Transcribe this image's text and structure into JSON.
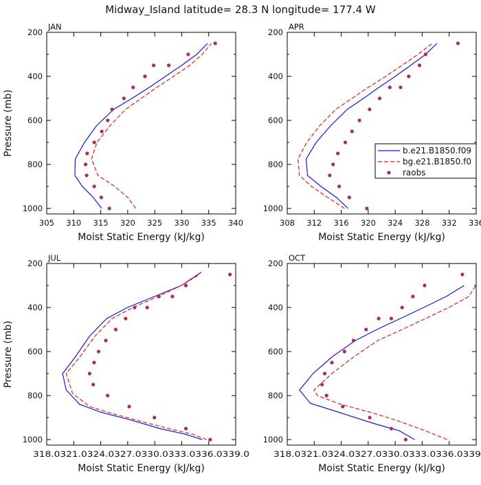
{
  "title": "Midway_Island  latitude= 28.3 N longitude= 177.4 W",
  "colors": {
    "model_b": "#1515e0",
    "model_bg": "#e81c1c",
    "raobs": "#a82c5c",
    "axis": "#000000"
  },
  "legend": [
    {
      "key": "model_b",
      "label": "b.e21.B1850.f09",
      "style": "solid"
    },
    {
      "key": "model_bg",
      "label": "bg.e21.B1850.f0",
      "style": "dashed"
    },
    {
      "key": "raobs",
      "label": "raobs",
      "style": "dot"
    }
  ],
  "chart_data": [
    {
      "type": "line",
      "panel": "JAN",
      "legend_shown": false,
      "xlabel": "Moist Static Energy (kJ/kg)",
      "ylabel": "Pressure (mb)",
      "xlim": [
        305,
        340
      ],
      "ylim": [
        200,
        1025
      ],
      "y_inverted": true,
      "xticks": [
        305,
        310,
        315,
        320,
        325,
        330,
        335,
        340
      ],
      "xtick_labels": [
        "305",
        "310",
        "315",
        "320",
        "325",
        "330",
        "335",
        "340"
      ],
      "yticks": [
        200,
        400,
        600,
        800,
        1000
      ],
      "series": [
        {
          "key": "model_b",
          "x": [
            315.2,
            313.6,
            311.6,
            310.2,
            310.3,
            312.0,
            314.2,
            317.4,
            320.8,
            324.0,
            327.0,
            330.0,
            332.8,
            334.8
          ],
          "y": [
            1000,
            950,
            900,
            850,
            775,
            700,
            625,
            550,
            500,
            450,
            400,
            350,
            300,
            250
          ]
        },
        {
          "key": "model_bg",
          "x": [
            321.5,
            320.0,
            317.6,
            314.5,
            313.3,
            314.3,
            316.7,
            319.6,
            322.5,
            325.4,
            328.5,
            331.5,
            333.8,
            335.5
          ],
          "y": [
            1000,
            950,
            900,
            850,
            775,
            700,
            625,
            550,
            500,
            450,
            400,
            350,
            300,
            250
          ]
        },
        {
          "key": "raobs",
          "x": [
            316.6,
            315.1,
            313.8,
            312.4,
            312.2,
            312.5,
            313.8,
            315.2,
            316.3,
            317.1,
            319.3,
            321.0,
            323.2,
            324.8,
            327.6,
            331.2,
            336.2
          ],
          "y": [
            1000,
            950,
            900,
            850,
            800,
            750,
            700,
            650,
            600,
            550,
            500,
            450,
            400,
            350,
            350,
            300,
            250
          ]
        }
      ]
    },
    {
      "type": "line",
      "panel": "APR",
      "legend_shown": true,
      "xlabel": "Moist Static Energy (kJ/kg)",
      "ylabel": "",
      "xlim": [
        308,
        336
      ],
      "ylim": [
        200,
        1025
      ],
      "y_inverted": true,
      "xticks": [
        308,
        312,
        316,
        320,
        324,
        328,
        332,
        336
      ],
      "xtick_labels": [
        "308",
        "312",
        "316",
        "320",
        "324",
        "328",
        "332",
        "336"
      ],
      "yticks": [
        200,
        400,
        600,
        800,
        1000
      ],
      "series": [
        {
          "key": "model_b",
          "x": [
            317.0,
            315.3,
            313.0,
            311.0,
            310.8,
            312.3,
            314.4,
            316.9,
            319.3,
            321.6,
            324.0,
            326.3,
            328.5,
            330.2
          ],
          "y": [
            1000,
            950,
            900,
            850,
            775,
            700,
            625,
            550,
            500,
            450,
            400,
            350,
            300,
            250
          ]
        },
        {
          "key": "model_bg",
          "x": [
            316.5,
            314.0,
            311.6,
            309.8,
            309.6,
            310.9,
            312.8,
            315.2,
            317.6,
            320.0,
            322.6,
            325.0,
            327.4,
            329.5
          ],
          "y": [
            1000,
            950,
            900,
            850,
            775,
            700,
            625,
            550,
            500,
            450,
            400,
            350,
            300,
            250
          ]
        },
        {
          "key": "raobs",
          "x": [
            319.8,
            317.2,
            315.7,
            314.3,
            314.8,
            315.5,
            316.6,
            317.6,
            318.7,
            320.2,
            321.7,
            323.2,
            324.8,
            326.0,
            327.6,
            328.5,
            333.3
          ],
          "y": [
            1000,
            950,
            900,
            850,
            800,
            750,
            700,
            650,
            600,
            550,
            500,
            450,
            450,
            400,
            350,
            300,
            250
          ]
        }
      ]
    },
    {
      "type": "line",
      "panel": "JUL",
      "legend_shown": false,
      "xlabel": "Moist Static Energy (kJ/kg)",
      "ylabel": "Pressure (mb)",
      "xlim": [
        318.0339,
        339.0339
      ],
      "ylim": [
        200,
        1025
      ],
      "y_inverted": true,
      "xticks": [
        318.0339,
        321.0339,
        324.0339,
        327.0339,
        330.0339,
        333.0339,
        336.0339,
        339.0339
      ],
      "xtick_labels": [
        "318.0",
        "321.0",
        "324.0",
        "327.0",
        "330.0",
        "333.0",
        "336.0",
        "339.0"
      ],
      "xtick_labels_raw": "318.0321.0324.0327.0330.0333.0336.0339.0",
      "yticks": [
        200,
        400,
        600,
        800,
        1000
      ],
      "series": [
        {
          "key": "model_b",
          "x": [
            335.3,
            333.4,
            330.6,
            327.3,
            324.0,
            321.7,
            320.2,
            319.8,
            321.2,
            322.8,
            324.7,
            327.0,
            330.0,
            333.0,
            335.2
          ],
          "y": [
            1000,
            975,
            950,
            910,
            875,
            840,
            775,
            700,
            625,
            530,
            450,
            400,
            350,
            300,
            240
          ]
        },
        {
          "key": "model_bg",
          "x": [
            335.8,
            334.2,
            331.6,
            328.3,
            325.2,
            322.8,
            320.9,
            320.2,
            321.7,
            323.4,
            325.3,
            327.6,
            330.4,
            333.0,
            335.0
          ],
          "y": [
            1000,
            975,
            950,
            915,
            880,
            850,
            790,
            700,
            625,
            530,
            450,
            400,
            350,
            300,
            250
          ]
        },
        {
          "key": "raobs",
          "x": [
            336.2,
            333.5,
            330.0,
            327.2,
            324.8,
            323.2,
            322.8,
            323.3,
            323.8,
            324.6,
            325.7,
            326.8,
            327.8,
            329.2,
            330.5,
            332.0,
            333.5,
            338.4
          ],
          "y": [
            1000,
            950,
            900,
            850,
            800,
            750,
            700,
            650,
            600,
            550,
            500,
            450,
            400,
            400,
            350,
            350,
            300,
            250
          ]
        }
      ]
    },
    {
      "type": "line",
      "panel": "OCT",
      "legend_shown": false,
      "xlabel": "Moist Static Energy (kJ/kg)",
      "ylabel": "",
      "xlim": [
        318.0339,
        339.0339
      ],
      "ylim": [
        200,
        1025
      ],
      "y_inverted": true,
      "xticks": [
        318.0339,
        321.0339,
        324.0339,
        327.0339,
        330.0339,
        333.0339,
        336.0339,
        339.0339
      ],
      "xtick_labels": [
        "318.0",
        "321.0",
        "324.0",
        "327.0",
        "330.0",
        "333.0",
        "336.0",
        "339.0"
      ],
      "xtick_labels_raw": "318.0321.0324.0327.0330.0333.0336.0339.0",
      "yticks": [
        200,
        400,
        600,
        800,
        1000
      ],
      "series": [
        {
          "key": "model_b",
          "x": [
            332.2,
            330.5,
            327.5,
            323.7,
            320.6,
            319.4,
            320.9,
            323.0,
            325.6,
            328.0,
            330.6,
            333.2,
            335.7,
            337.7
          ],
          "y": [
            1000,
            960,
            925,
            875,
            835,
            775,
            700,
            625,
            550,
            500,
            450,
            400,
            350,
            300
          ]
        },
        {
          "key": "model_bg",
          "x": [
            335.8,
            333.4,
            331.7,
            330.0,
            327.2,
            324.0,
            321.4,
            321.0,
            323.0,
            325.4,
            328.1,
            330.8,
            333.4,
            336.0,
            338.2,
            339.0
          ],
          "y": [
            1000,
            960,
            935,
            910,
            875,
            840,
            800,
            775,
            700,
            625,
            550,
            500,
            450,
            400,
            350,
            300
          ]
        },
        {
          "key": "raobs",
          "x": [
            331.2,
            329.6,
            327.2,
            324.2,
            322.4,
            321.9,
            322.2,
            323.0,
            324.4,
            325.4,
            326.8,
            328.2,
            329.6,
            330.8,
            332.0,
            333.3,
            337.5
          ],
          "y": [
            1000,
            950,
            900,
            850,
            800,
            750,
            700,
            650,
            600,
            550,
            500,
            450,
            450,
            400,
            350,
            300,
            250
          ]
        }
      ]
    }
  ]
}
